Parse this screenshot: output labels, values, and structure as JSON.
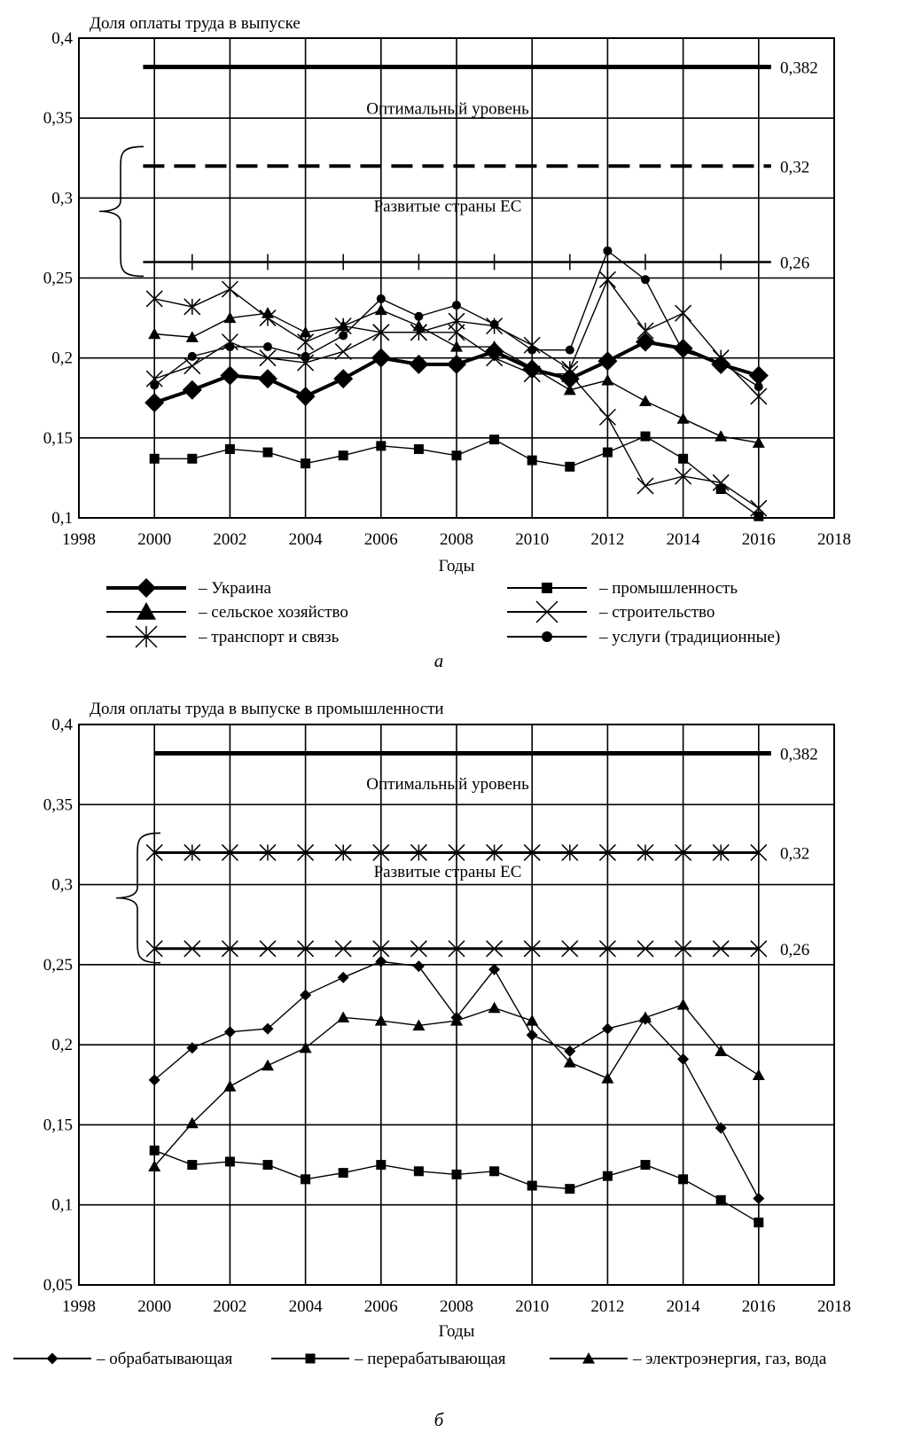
{
  "chart_data": [
    {
      "type": "line",
      "panel_label": "а",
      "title": "Доля оплаты труда в выпуске",
      "xlabel": "Годы",
      "ylabel": "",
      "xlim": [
        1998,
        2018
      ],
      "ylim": [
        0.1,
        0.4
      ],
      "x_ticks": [
        1998,
        2000,
        2002,
        2004,
        2006,
        2008,
        2010,
        2012,
        2014,
        2016,
        2018
      ],
      "x_tick_labels": [
        "1998",
        "2000",
        "2002",
        "2004",
        "2006",
        "2008",
        "2010",
        "2012",
        "2014",
        "2016",
        "2018"
      ],
      "y_ticks": [
        0.1,
        0.15,
        0.2,
        0.25,
        0.3,
        0.35,
        0.4
      ],
      "y_tick_labels": [
        "0,1",
        "0,15",
        "0,2",
        "0,25",
        "0,3",
        "0,35",
        "0,4"
      ],
      "grid": true,
      "legend_position": "bottom",
      "reference_lines": [
        {
          "value": 0.382,
          "label": "0,382",
          "style": "thick"
        },
        {
          "value": 0.32,
          "label": "0,32",
          "style": "dashed"
        },
        {
          "value": 0.26,
          "label": "0,26",
          "style": "ticked"
        }
      ],
      "band_labels": [
        {
          "text": "Оптимальный уровень",
          "y": 0.356
        },
        {
          "text": "Развитые страны ЕС",
          "y": 0.295
        }
      ],
      "x": [
        2000,
        2001,
        2002,
        2003,
        2004,
        2005,
        2006,
        2007,
        2008,
        2009,
        2010,
        2011,
        2012,
        2013,
        2014,
        2015,
        2016
      ],
      "series": [
        {
          "name": "– Украина",
          "marker": "diamond",
          "width": 4,
          "values": [
            0.172,
            0.18,
            0.189,
            0.187,
            0.176,
            0.187,
            0.2,
            0.196,
            0.196,
            0.204,
            0.193,
            0.187,
            0.198,
            0.21,
            0.206,
            0.196,
            0.189
          ]
        },
        {
          "name": "– сельское хозяйство",
          "marker": "triangle",
          "width": 1.4,
          "values": [
            0.215,
            0.213,
            0.225,
            0.228,
            0.216,
            0.22,
            0.23,
            0.22,
            0.207,
            0.207,
            0.194,
            0.18,
            0.186,
            0.173,
            0.162,
            0.151,
            0.147
          ]
        },
        {
          "name": "– транспорт и связь",
          "marker": "asterisk",
          "width": 1.4,
          "values": [
            0.237,
            0.232,
            0.243,
            0.225,
            0.21,
            0.22,
            0.216,
            0.216,
            0.223,
            0.22,
            0.208,
            0.193,
            0.249,
            0.217,
            0.228,
            0.2,
            0.176
          ]
        },
        {
          "name": "– промышленность",
          "marker": "square",
          "width": 1.4,
          "values": [
            0.137,
            0.137,
            0.143,
            0.141,
            0.134,
            0.139,
            0.145,
            0.143,
            0.139,
            0.149,
            0.136,
            0.132,
            0.141,
            0.151,
            0.137,
            0.118,
            0.101
          ]
        },
        {
          "name": "– строительство",
          "marker": "x",
          "width": 1.4,
          "values": [
            0.187,
            0.195,
            0.21,
            0.2,
            0.197,
            0.204,
            0.216,
            0.216,
            0.216,
            0.2,
            0.19,
            0.19,
            0.163,
            0.12,
            0.126,
            0.122,
            0.106
          ]
        },
        {
          "name": "– услуги (традиционные)",
          "marker": "circle",
          "width": 1.4,
          "values": [
            0.183,
            0.201,
            0.207,
            0.207,
            0.201,
            0.214,
            0.237,
            0.226,
            0.233,
            0.221,
            0.205,
            0.205,
            0.267,
            0.249,
            0.204,
            0.197,
            0.182
          ]
        }
      ]
    },
    {
      "type": "line",
      "panel_label": "б",
      "title": "Доля оплаты труда в выпуске в промышленности",
      "xlabel": "Годы",
      "ylabel": "",
      "xlim": [
        1998,
        2018
      ],
      "ylim": [
        0.05,
        0.4
      ],
      "x_ticks": [
        1998,
        2000,
        2002,
        2004,
        2006,
        2008,
        2010,
        2012,
        2014,
        2016,
        2018
      ],
      "x_tick_labels": [
        "1998",
        "2000",
        "2002",
        "2004",
        "2006",
        "2008",
        "2010",
        "2012",
        "2014",
        "2016",
        "2018"
      ],
      "y_ticks": [
        0.05,
        0.1,
        0.15,
        0.2,
        0.25,
        0.3,
        0.35,
        0.4
      ],
      "y_tick_labels": [
        "0,05",
        "0,1",
        "0,15",
        "0,2",
        "0,25",
        "0,3",
        "0,35",
        "0,4"
      ],
      "grid": true,
      "legend_position": "bottom",
      "reference_lines": [
        {
          "value": 0.382,
          "label": "0,382",
          "style": "thick"
        },
        {
          "value": 0.32,
          "label": "0,32",
          "style": "asterisk"
        },
        {
          "value": 0.26,
          "label": "0,26",
          "style": "cross"
        }
      ],
      "band_labels": [
        {
          "text": "Оптимальный уровень",
          "y": 0.363
        },
        {
          "text": "Развитые страны ЕС",
          "y": 0.308
        }
      ],
      "x": [
        2000,
        2001,
        2002,
        2003,
        2004,
        2005,
        2006,
        2007,
        2008,
        2009,
        2010,
        2011,
        2012,
        2013,
        2014,
        2015,
        2016
      ],
      "series": [
        {
          "name": "– обрабатывающая",
          "marker": "diamond",
          "width": 1.4,
          "values": [
            0.178,
            0.198,
            0.208,
            0.21,
            0.231,
            0.242,
            0.252,
            0.249,
            0.217,
            0.247,
            0.206,
            0.196,
            0.21,
            0.216,
            0.191,
            0.148,
            0.104
          ]
        },
        {
          "name": "– перерабатывающая",
          "marker": "square",
          "width": 1.4,
          "values": [
            0.134,
            0.125,
            0.127,
            0.125,
            0.116,
            0.12,
            0.125,
            0.121,
            0.119,
            0.121,
            0.112,
            0.11,
            0.118,
            0.125,
            0.116,
            0.103,
            0.089
          ]
        },
        {
          "name": "– электроэнергия, газ, вода",
          "marker": "triangle",
          "width": 1.4,
          "values": [
            0.124,
            0.151,
            0.174,
            0.187,
            0.198,
            0.217,
            0.215,
            0.212,
            0.215,
            0.223,
            0.215,
            0.189,
            0.179,
            0.217,
            0.225,
            0.196,
            0.181
          ]
        }
      ]
    }
  ]
}
